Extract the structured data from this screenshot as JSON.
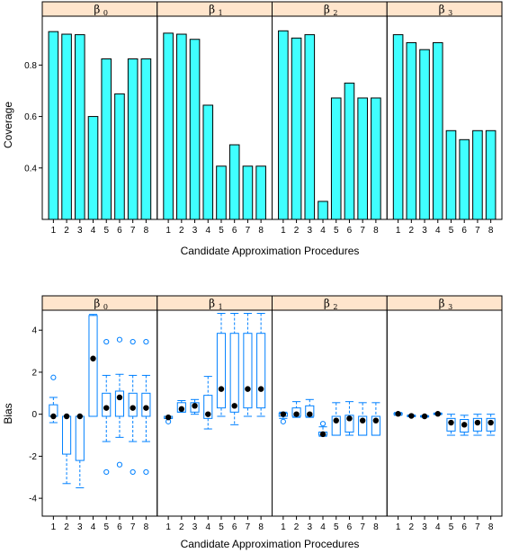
{
  "chart_data": [
    {
      "type": "bar",
      "panels": [
        {
          "label": "β",
          "sub": "0",
          "values": [
            0.93,
            0.92,
            0.918,
            0.6,
            0.824,
            0.688,
            0.824,
            0.824
          ]
        },
        {
          "label": "β",
          "sub": "1",
          "values": [
            0.924,
            0.92,
            0.9,
            0.644,
            0.407,
            0.49,
            0.407,
            0.407
          ]
        },
        {
          "label": "β",
          "sub": "2",
          "values": [
            0.933,
            0.905,
            0.918,
            0.27,
            0.672,
            0.73,
            0.672,
            0.672
          ]
        },
        {
          "label": "β",
          "sub": "3",
          "values": [
            0.918,
            0.887,
            0.86,
            0.887,
            0.545,
            0.51,
            0.545,
            0.545
          ]
        }
      ],
      "categories": [
        "1",
        "2",
        "3",
        "4",
        "5",
        "6",
        "7",
        "8"
      ],
      "y_ticks": [
        "0.4",
        "0.6",
        "0.8"
      ],
      "y_tick_values": [
        0.4,
        0.6,
        0.8
      ],
      "ylim": [
        0.2,
        0.99
      ],
      "xlabel": "Candidate Approximation Procedures",
      "ylabel": "Coverage",
      "bar_color": "#40ffff",
      "strip_color": "#ffe5cc"
    },
    {
      "type": "box",
      "panels": [
        {
          "label": "β",
          "sub": "0",
          "boxes": [
            {
              "wlo": -0.4,
              "q1": -0.1,
              "med": -0.1,
              "q3": 0.45,
              "whi": 0.8,
              "mean": -0.1,
              "out": [
                1.75
              ]
            },
            {
              "wlo": -3.3,
              "q1": -1.9,
              "med": -0.1,
              "q3": -0.1,
              "whi": -0.1,
              "mean": -0.1,
              "out": []
            },
            {
              "wlo": -3.5,
              "q1": -2.2,
              "med": -0.1,
              "q3": -0.1,
              "whi": -0.1,
              "mean": -0.1,
              "out": []
            },
            {
              "wlo": -0.1,
              "q1": -0.1,
              "med": 2.65,
              "q3": 4.7,
              "whi": 4.75,
              "mean": 2.65,
              "out": []
            },
            {
              "wlo": -1.3,
              "q1": -0.1,
              "med": 0.3,
              "q3": 1.0,
              "whi": 1.85,
              "mean": 0.3,
              "out": [
                3.45,
                -2.75
              ]
            },
            {
              "wlo": -1.1,
              "q1": -0.1,
              "med": 0.8,
              "q3": 1.1,
              "whi": 1.9,
              "mean": 0.8,
              "out": [
                3.55,
                -2.4
              ]
            },
            {
              "wlo": -1.3,
              "q1": -0.1,
              "med": 0.3,
              "q3": 1.0,
              "whi": 1.85,
              "mean": 0.3,
              "out": [
                3.45,
                -2.75
              ]
            },
            {
              "wlo": -1.3,
              "q1": -0.1,
              "med": 0.3,
              "q3": 1.0,
              "whi": 1.85,
              "mean": 0.3,
              "out": [
                3.45,
                -2.75
              ]
            }
          ]
        },
        {
          "label": "β",
          "sub": "1",
          "boxes": [
            {
              "wlo": -0.2,
              "q1": -0.2,
              "med": -0.15,
              "q3": -0.1,
              "whi": -0.1,
              "mean": -0.15,
              "out": [
                -0.35
              ]
            },
            {
              "wlo": 0.1,
              "q1": 0.1,
              "med": 0.25,
              "q3": 0.55,
              "whi": 0.65,
              "mean": 0.25,
              "out": []
            },
            {
              "wlo": 0.0,
              "q1": 0.1,
              "med": 0.4,
              "q3": 0.55,
              "whi": 0.7,
              "mean": 0.4,
              "out": []
            },
            {
              "wlo": -0.7,
              "q1": -0.2,
              "med": 0.0,
              "q3": 0.9,
              "whi": 1.8,
              "mean": 0.0,
              "out": []
            },
            {
              "wlo": -0.1,
              "q1": 0.3,
              "med": 1.2,
              "q3": 3.85,
              "whi": 4.8,
              "mean": 1.2,
              "out": []
            },
            {
              "wlo": -0.5,
              "q1": 0.1,
              "med": 0.4,
              "q3": 3.85,
              "whi": 4.8,
              "mean": 0.4,
              "out": []
            },
            {
              "wlo": -0.1,
              "q1": 0.3,
              "med": 1.2,
              "q3": 3.85,
              "whi": 4.8,
              "mean": 1.2,
              "out": []
            },
            {
              "wlo": -0.1,
              "q1": 0.3,
              "med": 1.2,
              "q3": 3.85,
              "whi": 4.8,
              "mean": 1.2,
              "out": []
            }
          ]
        },
        {
          "label": "β",
          "sub": "2",
          "boxes": [
            {
              "wlo": -0.2,
              "q1": -0.1,
              "med": 0.0,
              "q3": 0.05,
              "whi": 0.1,
              "mean": 0.0,
              "out": [
                -0.35
              ]
            },
            {
              "wlo": -0.15,
              "q1": -0.1,
              "med": 0.0,
              "q3": 0.3,
              "whi": 0.6,
              "mean": 0.0,
              "out": []
            },
            {
              "wlo": -0.15,
              "q1": -0.1,
              "med": 0.0,
              "q3": 0.4,
              "whi": 0.7,
              "mean": 0.0,
              "out": []
            },
            {
              "wlo": -1.05,
              "q1": -1.0,
              "med": -0.95,
              "q3": -0.85,
              "whi": -0.6,
              "mean": -0.95,
              "out": [
                -0.45
              ]
            },
            {
              "wlo": -1.0,
              "q1": -1.0,
              "med": -0.3,
              "q3": -0.1,
              "whi": 0.55,
              "mean": -0.3,
              "out": []
            },
            {
              "wlo": -1.0,
              "q1": -0.85,
              "med": -0.2,
              "q3": -0.05,
              "whi": 0.6,
              "mean": -0.2,
              "out": []
            },
            {
              "wlo": -1.0,
              "q1": -1.0,
              "med": -0.3,
              "q3": -0.1,
              "whi": 0.55,
              "mean": -0.3,
              "out": []
            },
            {
              "wlo": -1.0,
              "q1": -1.0,
              "med": -0.3,
              "q3": -0.1,
              "whi": 0.55,
              "mean": -0.3,
              "out": []
            }
          ]
        },
        {
          "label": "β",
          "sub": "3",
          "boxes": [
            {
              "wlo": -0.05,
              "q1": -0.02,
              "med": 0.02,
              "q3": 0.05,
              "whi": 0.08,
              "mean": 0.02,
              "out": []
            },
            {
              "wlo": -0.12,
              "q1": -0.1,
              "med": -0.08,
              "q3": -0.06,
              "whi": -0.04,
              "mean": -0.08,
              "out": []
            },
            {
              "wlo": -0.14,
              "q1": -0.12,
              "med": -0.1,
              "q3": -0.08,
              "whi": -0.06,
              "mean": -0.1,
              "out": []
            },
            {
              "wlo": -0.02,
              "q1": 0.0,
              "med": 0.02,
              "q3": 0.04,
              "whi": 0.06,
              "mean": 0.02,
              "out": []
            },
            {
              "wlo": -1.0,
              "q1": -0.8,
              "med": -0.4,
              "q3": -0.2,
              "whi": 0.0,
              "mean": -0.4,
              "out": []
            },
            {
              "wlo": -1.0,
              "q1": -0.85,
              "med": -0.5,
              "q3": -0.25,
              "whi": -0.05,
              "mean": -0.5,
              "out": []
            },
            {
              "wlo": -1.0,
              "q1": -0.8,
              "med": -0.4,
              "q3": -0.2,
              "whi": 0.0,
              "mean": -0.4,
              "out": []
            },
            {
              "wlo": -1.0,
              "q1": -0.8,
              "med": -0.4,
              "q3": -0.2,
              "whi": 0.0,
              "mean": -0.4,
              "out": []
            }
          ]
        }
      ],
      "categories": [
        "1",
        "2",
        "3",
        "4",
        "5",
        "6",
        "7",
        "8"
      ],
      "y_ticks": [
        "-4",
        "-2",
        "0",
        "2",
        "4"
      ],
      "y_tick_values": [
        -4,
        -2,
        0,
        2,
        4
      ],
      "ylim": [
        -4.85,
        4.95
      ],
      "xlabel": "Candidate Approximation Procedures",
      "ylabel": "Bias",
      "box_color": "#0080ff",
      "strip_color": "#ffe5cc"
    }
  ]
}
